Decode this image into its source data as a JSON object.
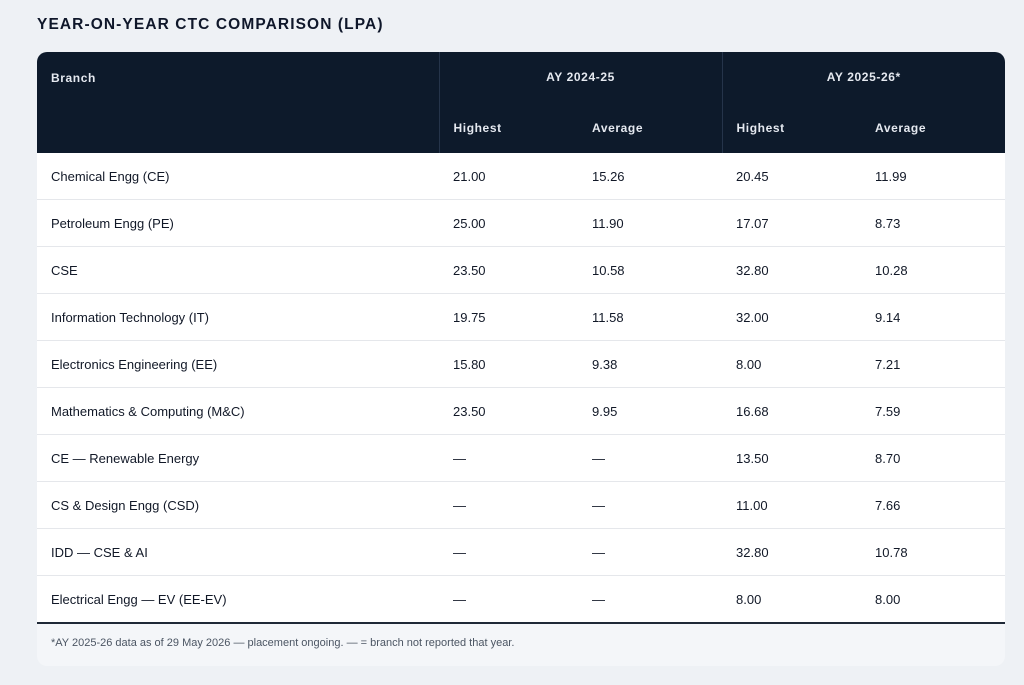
{
  "title": "YEAR-ON-YEAR CTC COMPARISON (LPA)",
  "table": {
    "branch_header": "Branch",
    "groups": [
      "AY 2024-25",
      "AY 2025-26*"
    ],
    "subheaders": [
      "Highest",
      "Average",
      "Highest",
      "Average"
    ],
    "rows": [
      [
        "Chemical Engg (CE)",
        "21.00",
        "15.26",
        "20.45",
        "11.99"
      ],
      [
        "Petroleum Engg (PE)",
        "25.00",
        "11.90",
        "17.07",
        "8.73"
      ],
      [
        "CSE",
        "23.50",
        "10.58",
        "32.80",
        "10.28"
      ],
      [
        "Information Technology (IT)",
        "19.75",
        "11.58",
        "32.00",
        "9.14"
      ],
      [
        "Electronics Engineering (EE)",
        "15.80",
        "9.38",
        "8.00",
        "7.21"
      ],
      [
        "Mathematics & Computing (M&C)",
        "23.50",
        "9.95",
        "16.68",
        "7.59"
      ],
      [
        "CE — Renewable Energy",
        "—",
        "—",
        "13.50",
        "8.70"
      ],
      [
        "CS & Design Engg (CSD)",
        "—",
        "—",
        "11.00",
        "7.66"
      ],
      [
        "IDD — CSE & AI",
        "—",
        "—",
        "32.80",
        "10.78"
      ],
      [
        "Electrical Engg — EV (EE-EV)",
        "—",
        "—",
        "8.00",
        "8.00"
      ]
    ]
  },
  "footnote": "*AY 2025-26 data as of 29 May 2026 — placement ongoing. — = branch not reported that year."
}
